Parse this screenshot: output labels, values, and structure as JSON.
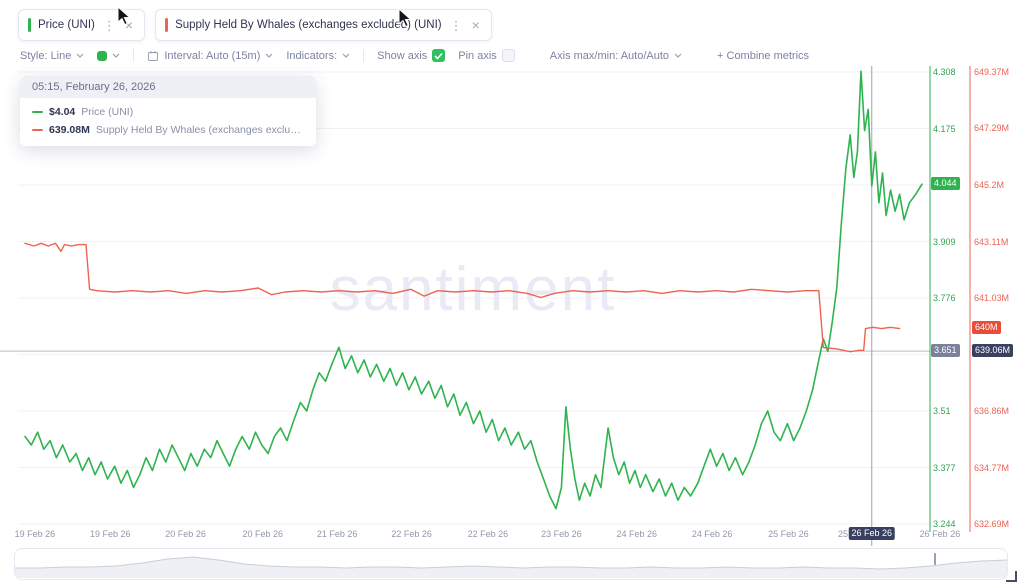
{
  "tabs": [
    {
      "label": "Price (UNI)",
      "color": "#2eb34f"
    },
    {
      "label": "Supply Held By Whales (exchanges excluded) (UNI)",
      "color": "#ee6352"
    }
  ],
  "icons": {
    "kebab": "⋮",
    "close": "×"
  },
  "toolbar": {
    "style_label": "Style: Line",
    "interval_label": "Interval: Auto (15m)",
    "indicators_label": "Indicators:",
    "show_axis_label": "Show axis",
    "pin_axis_label": "Pin axis",
    "axis_maxmin_label": "Axis max/min: Auto/Auto",
    "combine_metrics_label": "+ Combine metrics"
  },
  "tooltip": {
    "header": "05:15, February 26, 2026",
    "rows": [
      {
        "value": "$4.04",
        "name": "Price (UNI)",
        "color": "#2eb34f"
      },
      {
        "value": "639.08M",
        "name": "Supply Held By Whales (exchanges excluded) (UNI)",
        "color": "#ee6352"
      }
    ]
  },
  "watermark": "santiment",
  "chart_data": {
    "type": "line",
    "x_range": [
      "19 Feb 26",
      "26 Feb 26"
    ],
    "series": [
      {
        "name": "Price (UNI)",
        "color": "#2eb34f",
        "axis": "price",
        "points": [
          [
            0,
            3.45
          ],
          [
            0.7,
            3.43
          ],
          [
            1.4,
            3.46
          ],
          [
            2.1,
            3.42
          ],
          [
            2.8,
            3.44
          ],
          [
            3.5,
            3.4
          ],
          [
            4.2,
            3.43
          ],
          [
            5,
            3.39
          ],
          [
            5.7,
            3.41
          ],
          [
            6.4,
            3.37
          ],
          [
            7.1,
            3.4
          ],
          [
            7.8,
            3.36
          ],
          [
            8.5,
            3.39
          ],
          [
            9.2,
            3.35
          ],
          [
            10,
            3.38
          ],
          [
            10.7,
            3.34
          ],
          [
            11.4,
            3.37
          ],
          [
            12.1,
            3.33
          ],
          [
            12.8,
            3.36
          ],
          [
            13.5,
            3.4
          ],
          [
            14.2,
            3.37
          ],
          [
            15,
            3.42
          ],
          [
            15.7,
            3.39
          ],
          [
            16.4,
            3.43
          ],
          [
            17.1,
            3.4
          ],
          [
            17.8,
            3.37
          ],
          [
            18.5,
            3.41
          ],
          [
            19.2,
            3.38
          ],
          [
            20,
            3.42
          ],
          [
            20.7,
            3.4
          ],
          [
            21.4,
            3.44
          ],
          [
            22.1,
            3.41
          ],
          [
            22.8,
            3.38
          ],
          [
            23.5,
            3.42
          ],
          [
            24.2,
            3.45
          ],
          [
            25,
            3.42
          ],
          [
            25.7,
            3.46
          ],
          [
            26.4,
            3.43
          ],
          [
            27.1,
            3.41
          ],
          [
            27.8,
            3.45
          ],
          [
            28.5,
            3.47
          ],
          [
            29.2,
            3.44
          ],
          [
            30,
            3.49
          ],
          [
            30.7,
            3.53
          ],
          [
            31.4,
            3.51
          ],
          [
            32.1,
            3.56
          ],
          [
            32.8,
            3.6
          ],
          [
            33.5,
            3.58
          ],
          [
            34.2,
            3.62
          ],
          [
            35,
            3.66
          ],
          [
            35.7,
            3.61
          ],
          [
            36.4,
            3.64
          ],
          [
            37.1,
            3.6
          ],
          [
            37.8,
            3.63
          ],
          [
            38.5,
            3.59
          ],
          [
            39.2,
            3.62
          ],
          [
            40,
            3.58
          ],
          [
            40.7,
            3.61
          ],
          [
            41.4,
            3.57
          ],
          [
            42.1,
            3.6
          ],
          [
            42.8,
            3.56
          ],
          [
            43.5,
            3.59
          ],
          [
            44.2,
            3.55
          ],
          [
            45,
            3.58
          ],
          [
            45.7,
            3.54
          ],
          [
            46.4,
            3.57
          ],
          [
            47.1,
            3.52
          ],
          [
            47.8,
            3.55
          ],
          [
            48.5,
            3.5
          ],
          [
            49.2,
            3.53
          ],
          [
            50,
            3.48
          ],
          [
            50.7,
            3.51
          ],
          [
            51.4,
            3.46
          ],
          [
            52.1,
            3.49
          ],
          [
            52.8,
            3.44
          ],
          [
            53.5,
            3.47
          ],
          [
            54.2,
            3.43
          ],
          [
            55,
            3.46
          ],
          [
            55.7,
            3.42
          ],
          [
            56.4,
            3.44
          ],
          [
            57.1,
            3.39
          ],
          [
            57.8,
            3.35
          ],
          [
            58.5,
            3.31
          ],
          [
            59.2,
            3.28
          ],
          [
            59.8,
            3.33
          ],
          [
            60.3,
            3.52
          ],
          [
            60.8,
            3.42
          ],
          [
            61.3,
            3.35
          ],
          [
            61.8,
            3.3
          ],
          [
            62.4,
            3.34
          ],
          [
            63,
            3.31
          ],
          [
            63.6,
            3.36
          ],
          [
            64.2,
            3.33
          ],
          [
            65,
            3.47
          ],
          [
            65.6,
            3.4
          ],
          [
            66.2,
            3.36
          ],
          [
            66.8,
            3.39
          ],
          [
            67.4,
            3.34
          ],
          [
            68,
            3.37
          ],
          [
            68.6,
            3.33
          ],
          [
            69.2,
            3.36
          ],
          [
            70,
            3.32
          ],
          [
            70.7,
            3.35
          ],
          [
            71.4,
            3.31
          ],
          [
            72.1,
            3.34
          ],
          [
            72.8,
            3.3
          ],
          [
            73.5,
            3.33
          ],
          [
            74.2,
            3.31
          ],
          [
            75,
            3.34
          ],
          [
            75.7,
            3.38
          ],
          [
            76.4,
            3.42
          ],
          [
            77.1,
            3.38
          ],
          [
            77.8,
            3.41
          ],
          [
            78.5,
            3.37
          ],
          [
            79.2,
            3.4
          ],
          [
            80,
            3.36
          ],
          [
            80.7,
            3.39
          ],
          [
            81.4,
            3.43
          ],
          [
            82.1,
            3.48
          ],
          [
            82.8,
            3.51
          ],
          [
            83.5,
            3.46
          ],
          [
            84.2,
            3.44
          ],
          [
            85,
            3.48
          ],
          [
            85.7,
            3.44
          ],
          [
            86.4,
            3.47
          ],
          [
            87.1,
            3.51
          ],
          [
            87.8,
            3.56
          ],
          [
            88.4,
            3.62
          ],
          [
            89,
            3.68
          ],
          [
            89.5,
            3.65
          ],
          [
            90,
            3.72
          ],
          [
            90.5,
            3.8
          ],
          [
            91,
            3.95
          ],
          [
            91.5,
            4.08
          ],
          [
            92,
            4.16
          ],
          [
            92.4,
            4.06
          ],
          [
            92.8,
            4.12
          ],
          [
            93.2,
            4.31
          ],
          [
            93.6,
            4.17
          ],
          [
            94,
            4.22
          ],
          [
            94.4,
            4.04
          ],
          [
            94.8,
            4.12
          ],
          [
            95.2,
            4
          ],
          [
            95.6,
            4.07
          ],
          [
            96,
            3.97
          ],
          [
            96.5,
            4.03
          ],
          [
            97,
            3.98
          ],
          [
            97.5,
            4.02
          ],
          [
            98,
            3.96
          ],
          [
            98.6,
            4
          ],
          [
            99.3,
            4.02
          ],
          [
            100,
            4.044
          ]
        ]
      },
      {
        "name": "Supply Held By Whales (exchanges excluded) (UNI)",
        "color": "#ee6352",
        "axis": "supply",
        "points": [
          [
            0,
            643.05
          ],
          [
            1,
            642.95
          ],
          [
            1.8,
            643.05
          ],
          [
            2.6,
            642.95
          ],
          [
            3.4,
            643.05
          ],
          [
            4,
            642.75
          ],
          [
            4.4,
            643
          ],
          [
            5.2,
            642.95
          ],
          [
            6,
            643
          ],
          [
            6.8,
            643
          ],
          [
            7.2,
            641.35
          ],
          [
            8,
            641.3
          ],
          [
            10,
            641.25
          ],
          [
            12,
            641.3
          ],
          [
            14,
            641.25
          ],
          [
            16,
            641.3
          ],
          [
            18,
            641.2
          ],
          [
            20,
            641.3
          ],
          [
            22,
            641.25
          ],
          [
            24,
            641.3
          ],
          [
            26,
            641.4
          ],
          [
            27.5,
            641.15
          ],
          [
            29,
            641.25
          ],
          [
            31,
            641.3
          ],
          [
            33,
            641.25
          ],
          [
            35,
            641.3
          ],
          [
            37,
            641.25
          ],
          [
            39,
            641.3
          ],
          [
            41,
            641.2
          ],
          [
            43,
            641.35
          ],
          [
            44.5,
            641.1
          ],
          [
            46,
            641.3
          ],
          [
            48,
            641.25
          ],
          [
            50,
            641.3
          ],
          [
            52,
            641.25
          ],
          [
            54,
            641.3
          ],
          [
            56,
            641.2
          ],
          [
            57.5,
            641.05
          ],
          [
            59,
            641.2
          ],
          [
            61,
            641.3
          ],
          [
            63,
            641.25
          ],
          [
            65,
            641.3
          ],
          [
            67,
            641.25
          ],
          [
            69,
            641.3
          ],
          [
            71,
            641.2
          ],
          [
            73,
            641.3
          ],
          [
            75,
            641.25
          ],
          [
            77,
            641.3
          ],
          [
            79,
            641.25
          ],
          [
            81,
            641.35
          ],
          [
            83,
            641.3
          ],
          [
            85,
            641.25
          ],
          [
            87,
            641.3
          ],
          [
            88.5,
            641.3
          ],
          [
            89,
            639.2
          ],
          [
            90.5,
            639.15
          ],
          [
            92,
            639.05
          ],
          [
            93,
            639.1
          ],
          [
            93.5,
            639.1
          ],
          [
            93.7,
            639.9
          ],
          [
            94.5,
            639.95
          ],
          [
            95.5,
            639.9
          ],
          [
            96.5,
            639.95
          ],
          [
            97.5,
            639.9
          ]
        ]
      }
    ],
    "price_axis": {
      "min": 3.244,
      "max": 4.308,
      "color": "#2fa352",
      "ticks": [
        {
          "label": "4.308",
          "value": 4.308
        },
        {
          "label": "4.175",
          "value": 4.175
        },
        {
          "label": "3.909",
          "value": 3.909
        },
        {
          "label": "3.776",
          "value": 3.776
        },
        {
          "label": "3.51",
          "value": 3.51
        },
        {
          "label": "3.377",
          "value": 3.377
        },
        {
          "label": "3.244",
          "value": 3.244
        }
      ],
      "current_badge": {
        "label": "4.044",
        "value": 4.044,
        "bg": "#2eb34f"
      },
      "crosshair_badge": {
        "label": "3.651",
        "value": 3.651,
        "bg": "#7b819b"
      }
    },
    "supply_axis": {
      "min": 632.69,
      "max": 649.37,
      "color": "#ee6352",
      "ticks": [
        {
          "label": "649.37M",
          "value": 649.37
        },
        {
          "label": "647.29M",
          "value": 647.29
        },
        {
          "label": "645.2M",
          "value": 645.2
        },
        {
          "label": "643.11M",
          "value": 643.11
        },
        {
          "label": "641.03M",
          "value": 641.03
        },
        {
          "label": "636.86M",
          "value": 636.86
        },
        {
          "label": "634.77M",
          "value": 634.77
        },
        {
          "label": "632.69M",
          "value": 632.69
        }
      ],
      "current_badge": {
        "label": "640M",
        "value": 639.92,
        "bg": "#e64e3a"
      },
      "crosshair_badge": {
        "label": "639.06M",
        "value": 639.06,
        "bg": "#3a4060"
      }
    },
    "x_axis": {
      "labels": [
        {
          "f": 1.1,
          "label": "19 Feb 26"
        },
        {
          "f": 9.5,
          "label": "19 Feb 26"
        },
        {
          "f": 17.9,
          "label": "20 Feb 26"
        },
        {
          "f": 26.5,
          "label": "20 Feb 26"
        },
        {
          "f": 34.8,
          "label": "21 Feb 26"
        },
        {
          "f": 43.1,
          "label": "22 Feb 26"
        },
        {
          "f": 51.6,
          "label": "22 Feb 26"
        },
        {
          "f": 59.8,
          "label": "23 Feb 26"
        },
        {
          "f": 68.2,
          "label": "24 Feb 26"
        },
        {
          "f": 76.6,
          "label": "24 Feb 26"
        },
        {
          "f": 85.1,
          "label": "25 Feb 26"
        },
        {
          "f": 92.2,
          "label": "25 Feb"
        },
        {
          "f": 102,
          "label": "26 Feb 26"
        }
      ],
      "crosshair": {
        "x_frac": 94.4,
        "label": "26 Feb 26",
        "bg": "#3a4060"
      }
    }
  },
  "navigator": {
    "values": [
      8,
      8,
      9,
      9,
      10,
      13,
      17,
      19,
      16,
      12,
      10,
      9,
      9,
      8,
      9,
      9,
      8,
      9,
      10,
      9,
      8,
      9,
      9,
      8,
      8,
      9,
      8,
      8,
      9,
      8,
      8,
      9,
      8,
      8,
      7,
      8,
      10,
      13,
      15,
      16
    ]
  }
}
